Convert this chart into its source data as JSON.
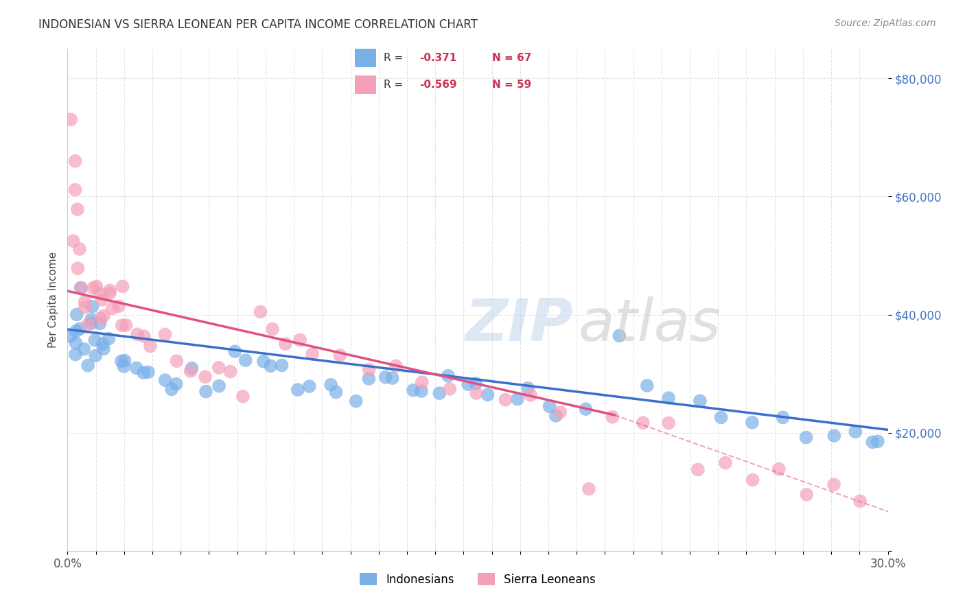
{
  "title": "INDONESIAN VS SIERRA LEONEAN PER CAPITA INCOME CORRELATION CHART",
  "source": "Source: ZipAtlas.com",
  "ylabel": "Per Capita Income",
  "xlim": [
    0.0,
    0.3
  ],
  "ylim": [
    0,
    85000
  ],
  "ytick_values": [
    0,
    20000,
    40000,
    60000,
    80000
  ],
  "ytick_labels": [
    "",
    "$20,000",
    "$40,000",
    "$60,000",
    "$80,000"
  ],
  "background_color": "#ffffff",
  "grid_color": "#dddddd",
  "legend_r_blue": "-0.371",
  "legend_n_blue": "67",
  "legend_r_pink": "-0.569",
  "legend_n_pink": "59",
  "blue_color": "#7ab0e8",
  "pink_color": "#f4a0b8",
  "trend_blue": "#3a6fcc",
  "trend_pink": "#e05080",
  "indonesians_x": [
    0.002,
    0.003,
    0.004,
    0.005,
    0.003,
    0.004,
    0.006,
    0.008,
    0.01,
    0.005,
    0.008,
    0.01,
    0.012,
    0.015,
    0.009,
    0.007,
    0.012,
    0.014,
    0.018,
    0.02,
    0.025,
    0.022,
    0.03,
    0.035,
    0.028,
    0.04,
    0.045,
    0.038,
    0.05,
    0.055,
    0.06,
    0.065,
    0.07,
    0.075,
    0.08,
    0.085,
    0.09,
    0.095,
    0.1,
    0.105,
    0.11,
    0.115,
    0.12,
    0.125,
    0.13,
    0.135,
    0.14,
    0.145,
    0.15,
    0.155,
    0.165,
    0.17,
    0.175,
    0.18,
    0.19,
    0.2,
    0.21,
    0.22,
    0.23,
    0.24,
    0.25,
    0.26,
    0.27,
    0.28,
    0.29,
    0.295,
    0.298
  ],
  "indonesians_y": [
    38000,
    37000,
    36500,
    36000,
    35500,
    34000,
    44000,
    42000,
    41000,
    38500,
    37500,
    37000,
    36000,
    35500,
    33000,
    31000,
    36000,
    35000,
    34000,
    33000,
    32000,
    31000,
    30000,
    29000,
    31000,
    30000,
    29000,
    28000,
    27000,
    26000,
    34000,
    33000,
    32000,
    31000,
    30000,
    29000,
    28000,
    27000,
    26000,
    25000,
    31000,
    30000,
    29000,
    28000,
    27000,
    26000,
    31000,
    30000,
    29000,
    28000,
    27000,
    26000,
    25000,
    24000,
    23000,
    38000,
    27000,
    26000,
    25000,
    24000,
    23000,
    22000,
    21000,
    20500,
    20000,
    19500,
    19000
  ],
  "sierraleoneans_x": [
    0.001,
    0.002,
    0.002,
    0.003,
    0.003,
    0.004,
    0.004,
    0.005,
    0.006,
    0.007,
    0.008,
    0.009,
    0.01,
    0.011,
    0.012,
    0.013,
    0.014,
    0.015,
    0.016,
    0.017,
    0.018,
    0.019,
    0.02,
    0.022,
    0.025,
    0.028,
    0.03,
    0.035,
    0.04,
    0.045,
    0.05,
    0.055,
    0.06,
    0.065,
    0.07,
    0.075,
    0.08,
    0.085,
    0.09,
    0.1,
    0.11,
    0.12,
    0.13,
    0.14,
    0.15,
    0.16,
    0.17,
    0.18,
    0.19,
    0.2,
    0.21,
    0.22,
    0.23,
    0.24,
    0.25,
    0.26,
    0.27,
    0.28,
    0.29
  ],
  "sierraleoneans_y": [
    73000,
    66000,
    63000,
    57000,
    52000,
    50000,
    48000,
    45000,
    43000,
    41000,
    40000,
    44000,
    43000,
    42000,
    41000,
    40000,
    39000,
    44000,
    43000,
    42000,
    41000,
    40000,
    44000,
    39000,
    38000,
    37000,
    36000,
    35000,
    33000,
    32000,
    31000,
    30000,
    29000,
    28000,
    42000,
    36000,
    35000,
    34000,
    33000,
    32000,
    31000,
    30000,
    29000,
    28000,
    27000,
    26000,
    25000,
    24000,
    11000,
    23000,
    22000,
    21000,
    15000,
    14000,
    13000,
    12000,
    11000,
    10000,
    9000
  ]
}
